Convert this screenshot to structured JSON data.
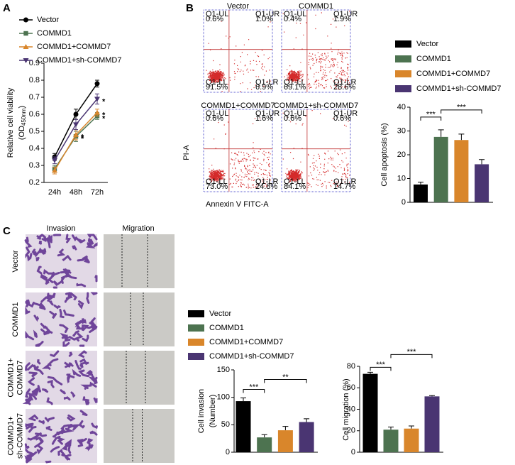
{
  "panel_labels": [
    "A",
    "B",
    "C"
  ],
  "flow_cytometry": {
    "x_label": "Annexin V FITC-A",
    "y_label": "PI-A",
    "plots": [
      {
        "title": "Vector",
        "quadrants": [
          [
            "Q1-UL",
            "0.6%"
          ],
          [
            "Q1-UR",
            "1.0%"
          ],
          [
            "Q1-LL",
            "91.5%"
          ],
          [
            "Q1-LR",
            "6.9%"
          ]
        ]
      },
      {
        "title": "COMMD1",
        "quadrants": [
          [
            "Q1-UL",
            "0.4%"
          ],
          [
            "Q1-UR",
            "1.9%"
          ],
          [
            "Q1-LL",
            "69.1%"
          ],
          [
            "Q1-LR",
            "28.6%"
          ]
        ]
      },
      {
        "title": "COMMD1+COMMD7",
        "quadrants": [
          [
            "Q1-UL",
            "0.6%"
          ],
          [
            "Q1-UR",
            "1.6%"
          ],
          [
            "Q1-LL",
            "73.0%"
          ],
          [
            "Q1-LR",
            "24.8%"
          ]
        ]
      },
      {
        "title": "COMMD1+sh-COMMD7",
        "quadrants": [
          [
            "Q1-UL",
            "0.6%"
          ],
          [
            "Q1-UR",
            "0.6%"
          ],
          [
            "Q1-LL",
            "84.1%"
          ],
          [
            "Q1-LR",
            "14.7%"
          ]
        ]
      }
    ]
  },
  "images": {
    "columns": [
      "Invasion",
      "Migration"
    ],
    "rows": [
      [
        "Vector"
      ],
      [
        "COMMD1"
      ],
      [
        "COMMD1+",
        "COMMD7"
      ],
      [
        "COMMD1+",
        "sh-COMMD7"
      ]
    ]
  },
  "chart_data": [
    {
      "type": "line",
      "y_label": "Relative cell viability",
      "y_label_unit": {
        "open": "(OD",
        "sub": "450nm",
        "close": ")"
      },
      "categories": [
        "24h",
        "48h",
        "72h"
      ],
      "ylim": [
        0.2,
        0.9
      ],
      "yticks": [
        0.2,
        0.3,
        0.4,
        0.5,
        0.6,
        0.7,
        0.8,
        0.9
      ],
      "legend": true,
      "series": [
        {
          "name": "Vector",
          "color": "#000000",
          "marker": "circle",
          "values": [
            0.35,
            0.6,
            0.78
          ],
          "errors": [
            0.02,
            0.03,
            0.02
          ],
          "significance": [
            null,
            null,
            null
          ]
        },
        {
          "name": "COMMD1",
          "color": "#4d7350",
          "marker": "square",
          "values": [
            0.28,
            0.47,
            0.59
          ],
          "errors": [
            0.02,
            0.03,
            0.02
          ],
          "significance": [
            null,
            "*",
            "*"
          ]
        },
        {
          "name": "COMMD1+COMMD7",
          "color": "#d9862b",
          "marker": "triangle-up",
          "values": [
            0.27,
            0.48,
            0.61
          ],
          "errors": [
            0.02,
            0.03,
            0.02
          ],
          "significance": [
            null,
            "*",
            "*"
          ]
        },
        {
          "name": "COMMD1+sh-COMMD7",
          "color": "#4a3572",
          "marker": "triangle-down",
          "values": [
            0.33,
            0.54,
            0.69
          ],
          "errors": [
            0.02,
            0.03,
            0.03
          ],
          "significance": [
            null,
            null,
            "*"
          ]
        }
      ]
    },
    {
      "type": "bar",
      "y_label": [
        "Cell apoptosis (%)"
      ],
      "categories": [
        "Vector",
        "COMMD1",
        "COMMD1+COMMD7",
        "COMMD1+sh-COMMD7"
      ],
      "colors": [
        "#000000",
        "#4d7350",
        "#d9862b",
        "#4a3572"
      ],
      "values": [
        7.5,
        27.5,
        26.2,
        16
      ],
      "errors": [
        1,
        3,
        2.5,
        2
      ],
      "ylim": [
        0,
        40
      ],
      "yticks": [
        0,
        10,
        20,
        30,
        40
      ],
      "legend": true,
      "brackets": [
        {
          "between": [
            0,
            1
          ],
          "label": "***"
        },
        {
          "between": [
            1,
            3
          ],
          "label": "***"
        }
      ]
    },
    {
      "type": "bar",
      "y_label": [
        "Cell invasion",
        "(Number)"
      ],
      "categories": [
        "Vector",
        "COMMD1",
        "COMMD1+COMMD7",
        "COMMD1+sh-COMMD7"
      ],
      "colors": [
        "#000000",
        "#4d7350",
        "#d9862b",
        "#4a3572"
      ],
      "values": [
        93,
        27,
        40,
        55
      ],
      "errors": [
        6,
        5,
        7,
        6
      ],
      "ylim": [
        0,
        150
      ],
      "yticks": [
        0,
        50,
        100,
        150
      ],
      "legend": true,
      "brackets": [
        {
          "between": [
            0,
            1
          ],
          "label": "***"
        },
        {
          "between": [
            1,
            3
          ],
          "label": "**"
        }
      ]
    },
    {
      "type": "bar",
      "y_label": [
        "Cell migration (%)"
      ],
      "colors": [
        "#000000",
        "#4d7350",
        "#d9862b",
        "#4a3572"
      ],
      "values": [
        73,
        21,
        22,
        52
      ],
      "errors": [
        1.5,
        2.5,
        2.5,
        0.7
      ],
      "ylim": [
        0,
        80
      ],
      "yticks": [
        0,
        20,
        40,
        60,
        80
      ],
      "legend": false,
      "brackets": [
        {
          "between": [
            0,
            1
          ],
          "label": "***"
        },
        {
          "between": [
            1,
            3
          ],
          "label": "***"
        }
      ]
    }
  ]
}
